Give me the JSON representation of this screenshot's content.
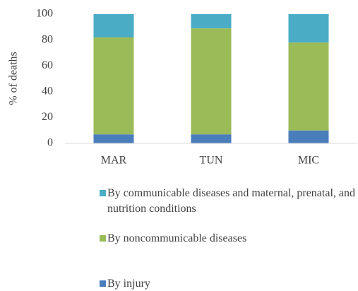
{
  "chart_data": {
    "type": "stacked-bar",
    "y_label": "% of deaths",
    "categories": [
      "MAR",
      "TUN",
      "MIC"
    ],
    "series": [
      {
        "name": "By injury",
        "color": "#4a7ebb",
        "values": [
          7,
          7,
          10
        ]
      },
      {
        "name": "By noncommunicable diseases",
        "color": "#9bbb59",
        "values": [
          75,
          82,
          68
        ]
      },
      {
        "name": "By communicable diseases and maternal, prenatal, and nutrition conditions",
        "color": "#4bacc6",
        "values": [
          18,
          11,
          22
        ]
      }
    ],
    "ylim": [
      0,
      100
    ],
    "yticks": [
      0,
      20,
      40,
      60,
      80,
      100
    ],
    "grid": false
  }
}
